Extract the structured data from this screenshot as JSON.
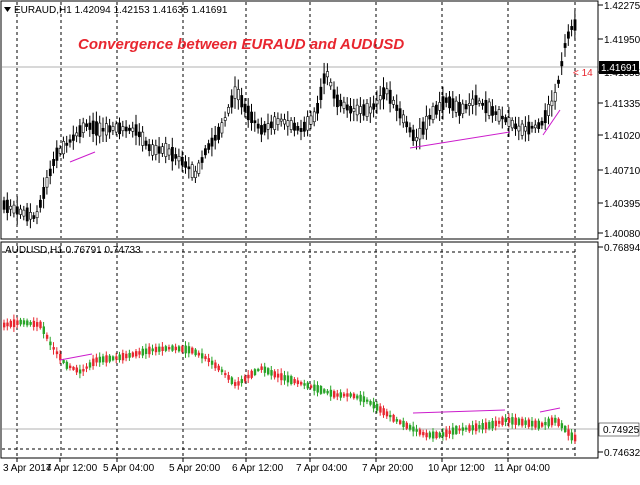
{
  "chart_data": [
    {
      "type": "candlestick",
      "symbol_header": "EURAUD,H1  1.42094 1.42153 1.41635 1.41691",
      "title": "Convergence between EURAUD and AUDUSD",
      "current_price_label": "1.41691",
      "right_marker": "< 14",
      "y_ticks": [
        "1.42275",
        "1.41950",
        "1.41655",
        "1.41335",
        "1.41020",
        "1.40710",
        "1.40395",
        "1.40080"
      ],
      "ylim": [
        1.4008,
        1.4228
      ],
      "grid": true,
      "candle_colors": {
        "up": "#000000",
        "down": "#000000",
        "body_up": "#ffffff",
        "body_down": "#000000"
      },
      "line_color": "#cc1ccc",
      "series": []
    },
    {
      "type": "candlestick",
      "symbol_header": "AUDUSD,H1 0.76791 0.74733",
      "current_price_label": "0.74925",
      "y_ticks": [
        "0.76894",
        "0.74925",
        "0.74632"
      ],
      "ylim": [
        0.7463,
        0.7689
      ],
      "grid": true,
      "candle_colors": {
        "up": "#27a327",
        "down": "#e8262f"
      },
      "line_color": "#cc1ccc",
      "series": []
    }
  ],
  "x_ticks": [
    "3 Apr 2017",
    "4 Apr 12:00",
    "5 Apr 04:00",
    "5 Apr 20:00",
    "6 Apr 12:00",
    "7 Apr 04:00",
    "7 Apr 20:00",
    "10 Apr 12:00",
    "11 Apr 04:00"
  ]
}
